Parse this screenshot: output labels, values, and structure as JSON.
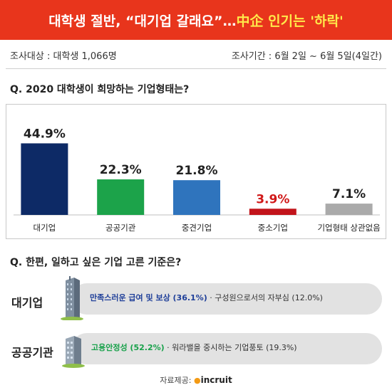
{
  "header": {
    "title_main": "대학생 절반, “대기업 갈래요”… ",
    "title_highlight": "中企 인기는 '하락'"
  },
  "meta": {
    "subjects": "조사대상 : 대학생 1,066명",
    "period": "조사기간 : 6월 2일 ~ 6월 5일(4일간)"
  },
  "question1": "Q. 2020 대학생이 희망하는 기업형태는?",
  "chart_data": {
    "type": "bar",
    "categories": [
      "대기업",
      "공공기관",
      "중견기업",
      "중소기업",
      "기업형태 상관없음"
    ],
    "values": [
      44.9,
      22.3,
      21.8,
      3.9,
      7.1
    ],
    "value_labels": [
      "44.9%",
      "22.3%",
      "21.8%",
      "3.9%",
      "7.1%"
    ],
    "colors": [
      "#0d2a66",
      "#1ca34a",
      "#2f74bd",
      "#c2141b",
      "#aaaaaa"
    ],
    "value_label_colors": [
      "#222222",
      "#222222",
      "#222222",
      "#d01818",
      "#222222"
    ],
    "ylim": [
      0,
      50
    ],
    "grid": false,
    "title": "",
    "xlabel": "",
    "ylabel": ""
  },
  "question2": "Q. 한편, 일하고 싶은 기업 고른 기준은?",
  "criteria": [
    {
      "label": "대기업",
      "primary": "만족스러운 급여 및 보상 (36.1%)",
      "secondary": " · 구성원으로서의 자부심 (12.0%)",
      "color": "#1f3f99"
    },
    {
      "label": "공공기관",
      "primary": "고용안정성 (52.2%)",
      "secondary": " · 워라밸을 중시하는 기업풍토 (19.3%)",
      "color": "#18a14a"
    }
  ],
  "footer": {
    "source_label": "자료제공: ",
    "logo_text": "incruit"
  }
}
